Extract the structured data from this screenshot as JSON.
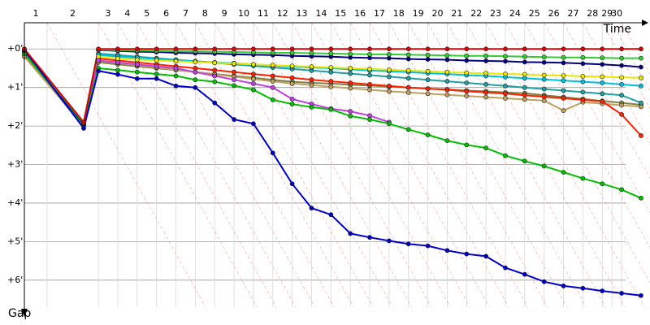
{
  "chart_data": {
    "type": "line",
    "x_label": "Time",
    "y_label": "Gap",
    "xlim": [
      0,
      32.2
    ],
    "ylim": [
      -0.68,
      6.7
    ],
    "xticks": [
      {
        "value": 1.17,
        "label": "1"
      },
      {
        "value": 3.82,
        "label": "2"
      },
      {
        "value": 4.82,
        "label": "3"
      },
      {
        "value": 5.82,
        "label": "4"
      },
      {
        "value": 6.82,
        "label": "5"
      },
      {
        "value": 7.82,
        "label": "6"
      },
      {
        "value": 8.82,
        "label": "7"
      },
      {
        "value": 9.82,
        "label": "8"
      },
      {
        "value": 10.82,
        "label": "9"
      },
      {
        "value": 11.82,
        "label": "10"
      },
      {
        "value": 12.82,
        "label": "11"
      },
      {
        "value": 13.82,
        "label": "12"
      },
      {
        "value": 14.82,
        "label": "13"
      },
      {
        "value": 15.82,
        "label": "14"
      },
      {
        "value": 16.82,
        "label": "15"
      },
      {
        "value": 17.82,
        "label": "16"
      },
      {
        "value": 18.82,
        "label": "17"
      },
      {
        "value": 19.82,
        "label": "18"
      },
      {
        "value": 20.82,
        "label": "19"
      },
      {
        "value": 21.82,
        "label": "20"
      },
      {
        "value": 22.82,
        "label": "21"
      },
      {
        "value": 23.82,
        "label": "22"
      },
      {
        "value": 24.82,
        "label": "23"
      },
      {
        "value": 25.82,
        "label": "24"
      },
      {
        "value": 26.82,
        "label": "25"
      },
      {
        "value": 27.82,
        "label": "26"
      },
      {
        "value": 28.82,
        "label": "27"
      },
      {
        "value": 29.82,
        "label": "28"
      },
      {
        "value": 30.32,
        "label": "29"
      },
      {
        "value": 30.82,
        "label": "30"
      }
    ],
    "yticks": [
      {
        "value": 0,
        "label": "+0'"
      },
      {
        "value": 1,
        "label": "+1'"
      },
      {
        "value": 2,
        "label": "+2'"
      },
      {
        "value": 3,
        "label": "+3'"
      },
      {
        "value": 4,
        "label": "+4'"
      },
      {
        "value": 5,
        "label": "+5'"
      },
      {
        "value": 6,
        "label": "+6'"
      }
    ],
    "grid": true,
    "x": [
      0,
      3.06,
      3.82,
      4.82,
      5.82,
      6.82,
      7.82,
      8.82,
      9.82,
      10.82,
      11.82,
      12.82,
      13.82,
      14.82,
      15.82,
      16.82,
      17.82,
      18.82,
      19.82,
      20.82,
      21.82,
      22.82,
      23.82,
      24.82,
      25.82,
      26.82,
      27.82,
      28.82,
      29.82,
      30.82,
      31.82
    ],
    "series": [
      {
        "color": "#808040",
        "values": [
          0.15,
          1.98,
          0.35,
          0.4,
          0.45,
          0.5,
          0.55,
          0.6,
          0.65,
          0.7,
          0.75,
          0.8,
          0.85,
          0.88,
          0.9,
          0.93,
          0.95,
          0.98,
          1.0,
          1.03,
          1.05,
          1.08,
          1.1,
          1.13,
          1.15,
          1.2,
          1.25,
          1.3,
          1.35,
          1.4,
          1.45
        ]
      },
      {
        "color": "#c0a060",
        "values": [
          0.2,
          2.0,
          0.3,
          0.36,
          0.42,
          0.48,
          0.54,
          0.6,
          0.66,
          0.72,
          0.78,
          0.84,
          0.9,
          0.94,
          0.98,
          1.02,
          1.06,
          1.1,
          1.13,
          1.16,
          1.19,
          1.22,
          1.25,
          1.28,
          1.31,
          1.34,
          1.6,
          1.38,
          1.42,
          1.46,
          1.5
        ]
      },
      {
        "color": "#20a0a0",
        "values": [
          0.05,
          1.91,
          0.12,
          0.16,
          0.2,
          0.24,
          0.28,
          0.32,
          0.36,
          0.4,
          0.44,
          0.48,
          0.52,
          0.56,
          0.6,
          0.64,
          0.68,
          0.72,
          0.76,
          0.8,
          0.84,
          0.88,
          0.92,
          0.96,
          1.0,
          1.04,
          1.08,
          1.12,
          1.16,
          1.2,
          1.4
        ]
      },
      {
        "color": "#ff2000",
        "values": [
          0.1,
          1.96,
          0.25,
          0.3,
          0.35,
          0.4,
          0.45,
          0.5,
          0.55,
          0.6,
          0.65,
          0.7,
          0.75,
          0.8,
          0.84,
          0.88,
          0.92,
          0.96,
          1.0,
          1.03,
          1.06,
          1.1,
          1.13,
          1.16,
          1.2,
          1.24,
          1.28,
          1.32,
          1.36,
          1.7,
          2.25
        ]
      },
      {
        "color": "#00c0e0",
        "values": [
          0.08,
          1.93,
          0.15,
          0.2,
          0.23,
          0.26,
          0.29,
          0.32,
          0.35,
          0.37,
          0.4,
          0.43,
          0.46,
          0.48,
          0.5,
          0.53,
          0.56,
          0.58,
          0.6,
          0.63,
          0.65,
          0.68,
          0.7,
          0.73,
          0.76,
          0.79,
          0.82,
          0.85,
          0.88,
          0.92,
          0.96
        ]
      },
      {
        "color": "#e8e800",
        "values": [
          0.06,
          1.9,
          0.2,
          0.25,
          0.28,
          0.3,
          0.32,
          0.34,
          0.36,
          0.38,
          0.4,
          0.42,
          0.44,
          0.46,
          0.48,
          0.5,
          0.52,
          0.54,
          0.56,
          0.58,
          0.6,
          0.62,
          0.63,
          0.65,
          0.66,
          0.68,
          0.69,
          0.71,
          0.72,
          0.74,
          0.75
        ]
      },
      {
        "color": "#c040e0",
        "values": [
          0.1,
          1.94,
          0.3,
          0.35,
          0.4,
          0.45,
          0.5,
          0.6,
          0.7,
          0.8,
          0.9,
          1.0,
          1.3,
          1.43,
          1.55,
          1.62,
          1.73,
          1.9,
          null,
          null,
          null,
          null,
          null,
          null,
          null,
          null,
          null,
          null,
          null,
          null,
          null
        ]
      },
      {
        "color": "#00c000",
        "values": [
          0.12,
          1.97,
          0.5,
          0.55,
          0.6,
          0.65,
          0.7,
          0.8,
          0.85,
          0.95,
          1.06,
          1.32,
          1.43,
          1.51,
          1.57,
          1.74,
          1.83,
          1.94,
          2.09,
          2.23,
          2.38,
          2.49,
          2.57,
          2.77,
          2.91,
          3.04,
          3.2,
          3.36,
          3.5,
          3.65,
          3.87
        ]
      },
      {
        "color": "#000080",
        "values": [
          0.04,
          1.95,
          0.03,
          0.05,
          0.07,
          0.08,
          0.1,
          0.11,
          0.12,
          0.14,
          0.15,
          0.16,
          0.18,
          0.19,
          0.2,
          0.22,
          0.23,
          0.24,
          0.26,
          0.27,
          0.28,
          0.3,
          0.31,
          0.32,
          0.34,
          0.35,
          0.36,
          0.38,
          0.4,
          0.43,
          0.47
        ]
      },
      {
        "color": "#33cc33",
        "values": [
          0.02,
          1.92,
          0.02,
          0.03,
          0.04,
          0.05,
          0.06,
          0.06,
          0.07,
          0.08,
          0.09,
          0.1,
          0.1,
          0.11,
          0.12,
          0.13,
          0.14,
          0.14,
          0.15,
          0.16,
          0.17,
          0.18,
          0.18,
          0.19,
          0.2,
          0.21,
          0.22,
          0.22,
          0.23,
          0.24,
          0.24
        ]
      },
      {
        "color": "#0000cc",
        "values": [
          0.02,
          2.06,
          0.57,
          0.66,
          0.77,
          0.77,
          0.96,
          1.0,
          1.4,
          1.83,
          1.94,
          2.7,
          3.5,
          4.13,
          4.3,
          4.79,
          4.89,
          4.98,
          5.06,
          5.11,
          5.23,
          5.32,
          5.38,
          5.68,
          5.85,
          6.04,
          6.15,
          6.21,
          6.28,
          6.34,
          6.4
        ]
      },
      {
        "color": "#e00000",
        "values": [
          0,
          1.9,
          0,
          0,
          0,
          0,
          0,
          0,
          0,
          0,
          0,
          0,
          0,
          0,
          0,
          0,
          0,
          0,
          0,
          0,
          0,
          0,
          0,
          0,
          0,
          0,
          0,
          0,
          0,
          0,
          0
        ]
      }
    ]
  }
}
